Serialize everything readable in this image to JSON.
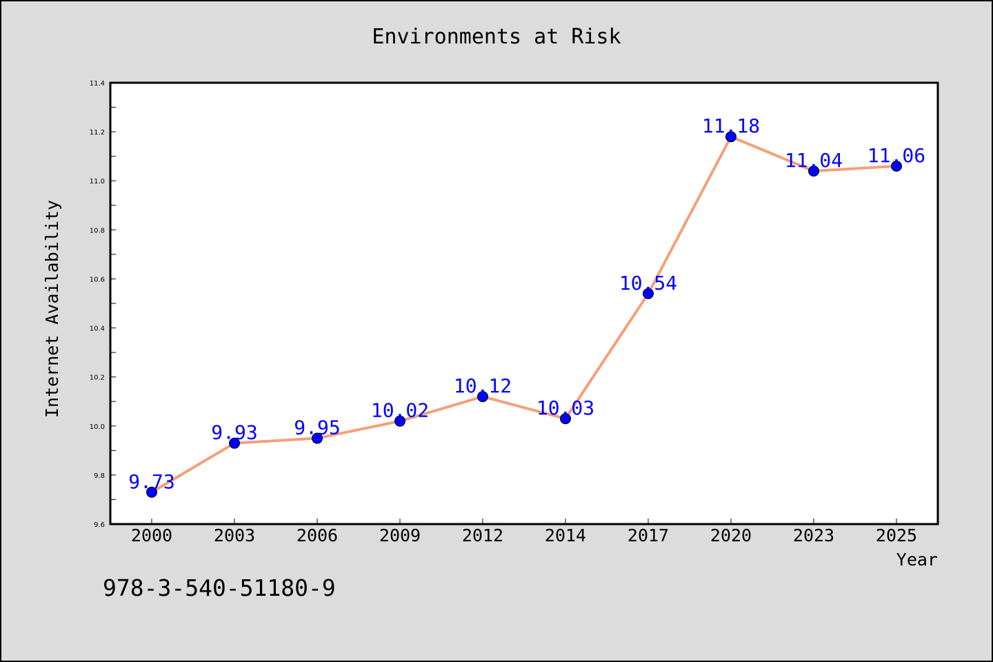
{
  "chart_data": {
    "type": "line",
    "title": "Environments at Risk",
    "xlabel": "Year",
    "ylabel": "Internet Availability",
    "categories": [
      "2000",
      "2003",
      "2006",
      "2009",
      "2012",
      "2014",
      "2017",
      "2020",
      "2023",
      "2025"
    ],
    "series": [
      {
        "values": [
          9.73,
          9.93,
          9.95,
          10.02,
          10.12,
          10.03,
          10.54,
          11.18,
          11.04,
          11.06
        ],
        "line_color": "#f4a07a",
        "marker_color": "#0000ff",
        "label_color": "#0000ff"
      }
    ],
    "ylim": [
      9.6,
      11.4
    ],
    "y_ticks": [
      "9.6",
      "9.8",
      "10.0",
      "10.2",
      "10.4",
      "10.6",
      "10.8",
      "11.0",
      "11.2",
      "11.4"
    ],
    "data_labels": [
      "9.73",
      "9.93",
      "9.95",
      "10.02",
      "10.12",
      "10.03",
      "10.54",
      "11.18",
      "11.04",
      "11.06"
    ],
    "grid": false,
    "legend": "none",
    "background_color": "#dcdcdc",
    "plot_background_color": "#ffffff"
  },
  "annotation": {
    "isbn": "978-3-540-51180-9"
  }
}
